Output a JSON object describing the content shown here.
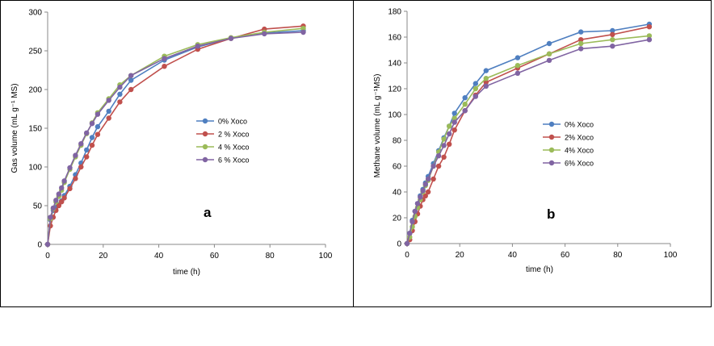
{
  "colors": {
    "s0": "#4f7fc0",
    "s1": "#c0504d",
    "s2": "#9bbb59",
    "s3": "#8064a2"
  },
  "chart_data": [
    {
      "type": "line",
      "panel_label": "a",
      "xlabel": "time (h)",
      "ylabel": "Gas volume (mL g⁻¹ MS)",
      "xlim": [
        0,
        100
      ],
      "ylim": [
        0,
        300
      ],
      "xticks": [
        0,
        20,
        40,
        60,
        80,
        100
      ],
      "yticks": [
        0,
        50,
        100,
        150,
        200,
        250,
        300
      ],
      "grid": false,
      "legend_position": "center-right",
      "series": [
        {
          "name": "0% Xoco",
          "color_key": "s0",
          "x": [
            0,
            1,
            2,
            3,
            4,
            5,
            6,
            8,
            10,
            12,
            14,
            16,
            18,
            22,
            26,
            30,
            42,
            54,
            66,
            78,
            92
          ],
          "y": [
            0,
            32,
            44,
            48,
            51,
            56,
            63,
            75,
            90,
            105,
            122,
            138,
            152,
            172,
            194,
            212,
            238,
            255,
            266,
            273,
            276
          ]
        },
        {
          "name": "2 % Xoco",
          "color_key": "s1",
          "x": [
            0,
            1,
            2,
            3,
            4,
            5,
            6,
            8,
            10,
            12,
            14,
            16,
            18,
            22,
            26,
            30,
            42,
            54,
            66,
            78,
            92
          ],
          "y": [
            0,
            24,
            35,
            44,
            50,
            55,
            60,
            72,
            85,
            100,
            113,
            128,
            142,
            163,
            184,
            200,
            230,
            252,
            266,
            278,
            282
          ]
        },
        {
          "name": "4 % Xoco",
          "color_key": "s2",
          "x": [
            0,
            1,
            2,
            3,
            4,
            5,
            6,
            8,
            10,
            12,
            14,
            16,
            18,
            22,
            26,
            30,
            42,
            54,
            66,
            78,
            92
          ],
          "y": [
            0,
            33,
            46,
            55,
            62,
            70,
            80,
            97,
            113,
            128,
            143,
            157,
            170,
            188,
            206,
            218,
            243,
            258,
            267,
            274,
            279
          ]
        },
        {
          "name": "6 % Xoco",
          "color_key": "s3",
          "x": [
            0,
            1,
            2,
            3,
            4,
            5,
            6,
            8,
            10,
            12,
            14,
            16,
            18,
            22,
            26,
            30,
            42,
            54,
            66,
            78,
            92
          ],
          "y": [
            0,
            35,
            47,
            57,
            65,
            73,
            82,
            99,
            115,
            130,
            144,
            156,
            168,
            186,
            203,
            218,
            240,
            256,
            266,
            272,
            274
          ]
        }
      ]
    },
    {
      "type": "line",
      "panel_label": "b",
      "xlabel": "time (h)",
      "ylabel": "Methane volume (mL g⁻¹MS)",
      "xlim": [
        0,
        100
      ],
      "ylim": [
        0,
        180
      ],
      "xticks": [
        0,
        20,
        40,
        60,
        80,
        100
      ],
      "yticks": [
        0,
        20,
        40,
        60,
        80,
        100,
        120,
        140,
        160,
        180
      ],
      "grid": false,
      "legend_position": "center-right",
      "series": [
        {
          "name": "0% Xoco",
          "color_key": "s0",
          "x": [
            0,
            1,
            2,
            3,
            4,
            5,
            6,
            7,
            8,
            10,
            12,
            14,
            16,
            18,
            22,
            26,
            30,
            42,
            54,
            66,
            78,
            92
          ],
          "y": [
            0,
            8,
            18,
            25,
            31,
            37,
            42,
            47,
            52,
            62,
            72,
            82,
            91,
            101,
            113,
            124,
            134,
            144,
            155,
            164,
            165,
            170
          ]
        },
        {
          "name": "2% Xoco",
          "color_key": "s1",
          "x": [
            0,
            1,
            2,
            3,
            4,
            5,
            6,
            7,
            8,
            10,
            12,
            14,
            16,
            18,
            22,
            26,
            30,
            42,
            54,
            66,
            78,
            92
          ],
          "y": [
            0,
            3,
            10,
            17,
            23,
            29,
            34,
            37,
            40,
            50,
            60,
            67,
            77,
            88,
            103,
            115,
            125,
            136,
            147,
            158,
            162,
            168
          ]
        },
        {
          "name": "4% Xoco",
          "color_key": "s2",
          "x": [
            0,
            1,
            2,
            3,
            4,
            5,
            6,
            7,
            8,
            10,
            12,
            14,
            16,
            18,
            22,
            26,
            30,
            42,
            54,
            66,
            78,
            92
          ],
          "y": [
            0,
            5,
            13,
            21,
            28,
            34,
            40,
            45,
            49,
            60,
            71,
            81,
            91,
            97,
            108,
            120,
            128,
            138,
            147,
            155,
            158,
            161
          ]
        },
        {
          "name": "6% Xoco",
          "color_key": "s3",
          "x": [
            0,
            1,
            2,
            3,
            4,
            5,
            6,
            7,
            8,
            10,
            12,
            14,
            16,
            18,
            22,
            26,
            30,
            42,
            54,
            66,
            78,
            92
          ],
          "y": [
            0,
            8,
            17,
            25,
            31,
            36,
            41,
            46,
            50,
            60,
            68,
            76,
            85,
            94,
            103,
            114,
            122,
            132,
            142,
            151,
            153,
            158
          ]
        }
      ]
    }
  ]
}
